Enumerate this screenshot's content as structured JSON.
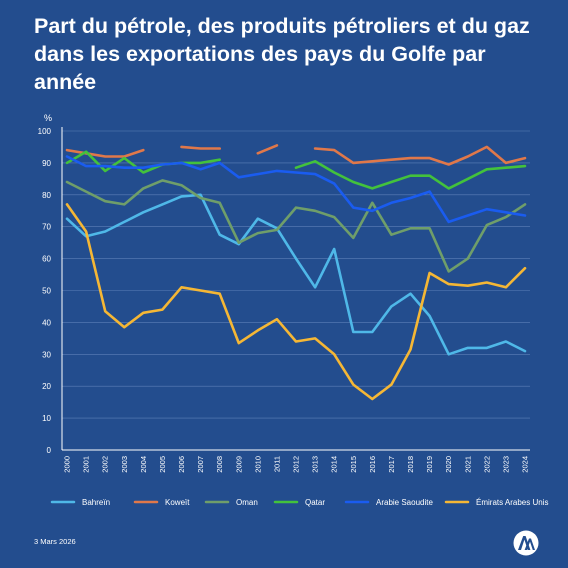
{
  "title": "Part du pétrole, des produits pétroliers et du gaz dans les exportations des pays du Golfe par année",
  "footer": {
    "date": "3 Mars 2026"
  },
  "logo_icon": "aa-logo-icon",
  "chart_data": {
    "type": "line",
    "title": "Part du pétrole, des produits pétroliers et du gaz dans les exportations des pays du Golfe par année",
    "xlabel": "",
    "ylabel": "%",
    "ylim": [
      0,
      100
    ],
    "yticks": [
      0,
      10,
      20,
      30,
      40,
      50,
      60,
      70,
      80,
      90,
      100
    ],
    "grid": true,
    "legend": "bottom",
    "x": [
      "2000",
      "2001",
      "2002",
      "2003",
      "2004",
      "2005",
      "2006",
      "2007",
      "2008",
      "2009",
      "2010",
      "2011",
      "2012",
      "2013",
      "2014",
      "2015",
      "2016",
      "2017",
      "2018",
      "2019",
      "2020",
      "2021",
      "2022",
      "2023",
      "2024"
    ],
    "series": [
      {
        "name": "Bahreïn",
        "color": "#4fb8e8",
        "values": [
          72.5,
          67,
          68.5,
          71.5,
          74.5,
          77,
          79.5,
          80,
          67.5,
          64.5,
          72.5,
          69.5,
          60,
          51,
          63,
          37,
          37,
          45,
          49,
          42,
          30,
          32,
          32,
          34,
          31
        ]
      },
      {
        "name": "Koweït",
        "color": "#e0784a",
        "values": [
          94,
          93,
          92,
          92,
          94,
          null,
          95,
          94.5,
          94.5,
          null,
          93,
          95.5,
          null,
          94.5,
          94,
          90,
          90.5,
          91,
          91.5,
          91.5,
          89.5,
          92,
          95,
          90,
          91.5
        ]
      },
      {
        "name": "Oman",
        "color": "#6f9e6a",
        "values": [
          84,
          81,
          78,
          77,
          82,
          84.5,
          83,
          79,
          77.5,
          65,
          68,
          69,
          76,
          75,
          73,
          66.5,
          77.5,
          67.5,
          69.5,
          69.5,
          56,
          60,
          70.5,
          73,
          77
        ]
      },
      {
        "name": "Qatar",
        "color": "#43c23c",
        "values": [
          90,
          93.5,
          87.5,
          91.5,
          87,
          89.5,
          90,
          90,
          91,
          null,
          null,
          null,
          88.5,
          90.5,
          87,
          84,
          82,
          84,
          86,
          86,
          82,
          85,
          88,
          88.5,
          89
        ]
      },
      {
        "name": "Arabie Saoudite",
        "color": "#1a5cf0",
        "values": [
          92,
          89,
          89,
          88.5,
          88.5,
          89.5,
          90,
          88,
          90,
          85.5,
          86.5,
          87.5,
          87,
          86.5,
          83.5,
          76,
          75,
          77.5,
          79,
          81,
          71.5,
          73.5,
          75.5,
          74.5,
          73.5
        ]
      },
      {
        "name": "Émirats Arabes Unis",
        "color": "#f5b735",
        "values": [
          77,
          68.5,
          43.5,
          38.5,
          43,
          44,
          51,
          50,
          49,
          33.5,
          37.5,
          41,
          34,
          35,
          30,
          20.5,
          16,
          20.5,
          31.5,
          55.5,
          52,
          51.5,
          52.5,
          51,
          57
        ]
      }
    ]
  }
}
